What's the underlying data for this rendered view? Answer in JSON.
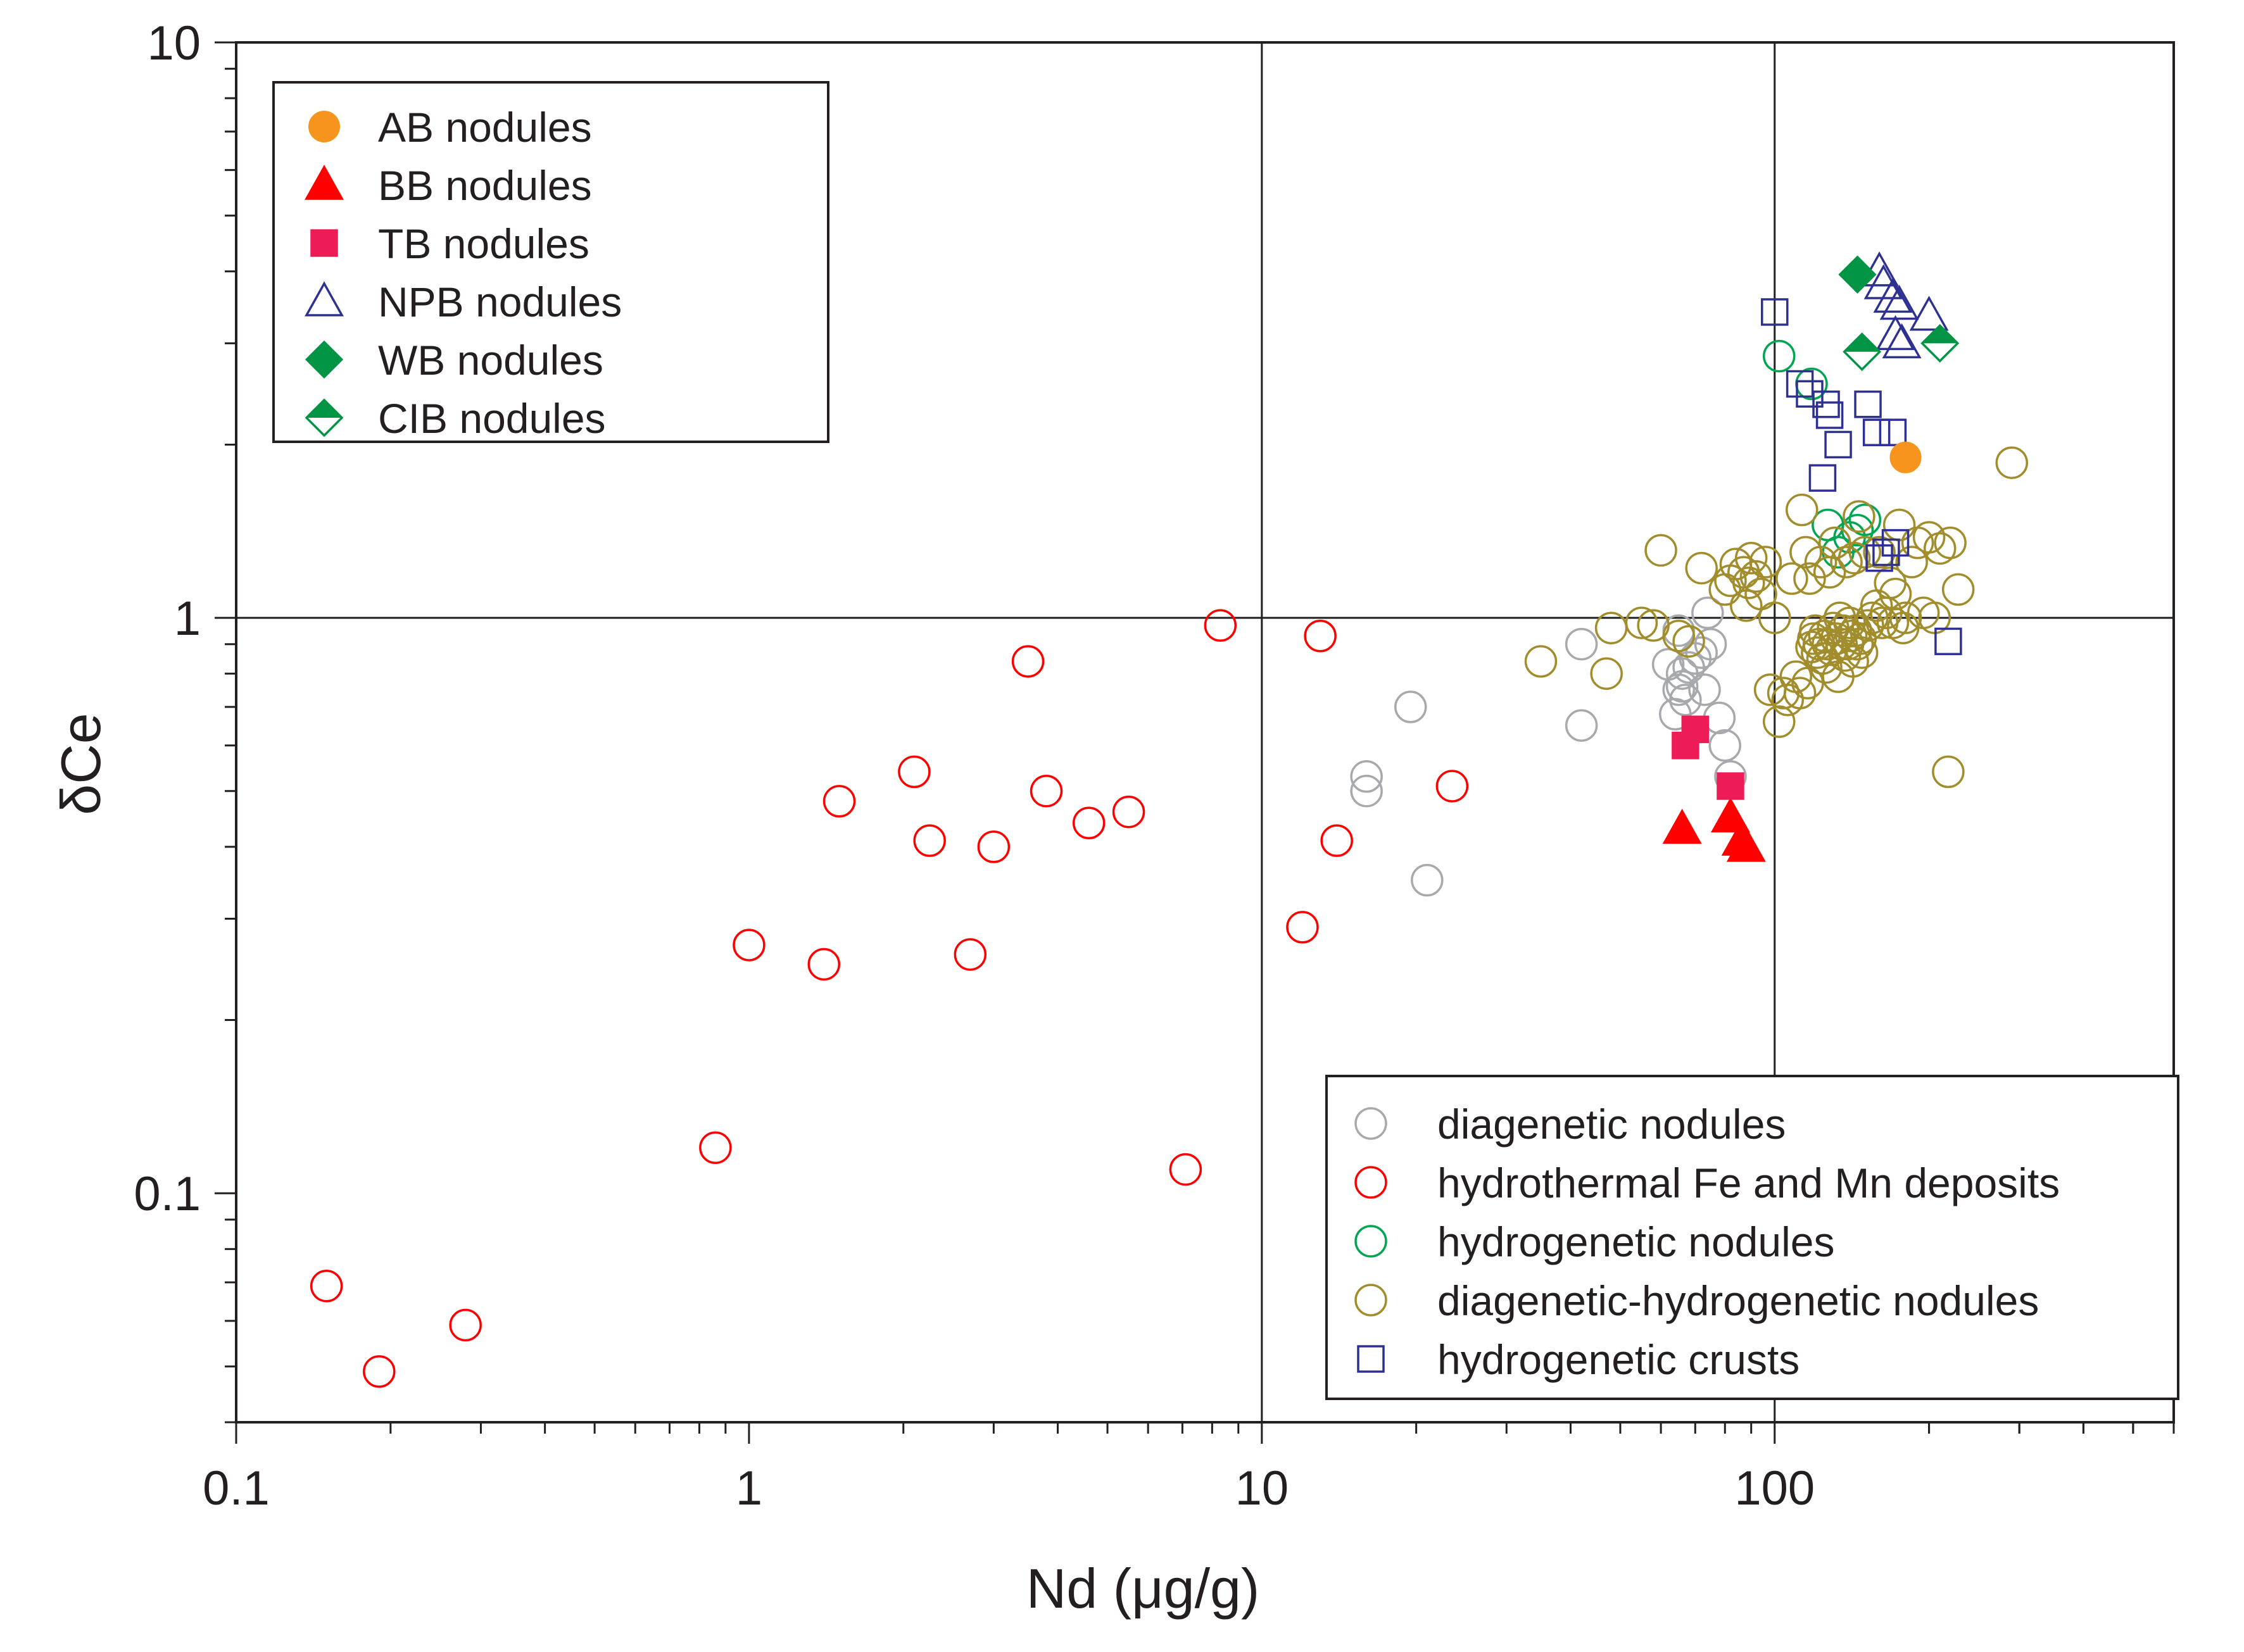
{
  "chart_data": {
    "type": "scatter",
    "title": "",
    "xlabel": "Nd (μg/g)",
    "ylabel": "δCe",
    "x_scale": "log",
    "y_scale": "log",
    "xlim": [
      0.1,
      600
    ],
    "ylim": [
      0.04,
      10
    ],
    "x_ticks": [
      {
        "value": 0.1,
        "label": "0.1"
      },
      {
        "value": 1,
        "label": "1"
      },
      {
        "value": 10,
        "label": "10"
      },
      {
        "value": 100,
        "label": "100"
      }
    ],
    "y_ticks": [
      {
        "value": 0.1,
        "label": "0.1"
      },
      {
        "value": 1,
        "label": "1"
      },
      {
        "value": 10,
        "label": "10"
      }
    ],
    "grid": "major lines at x = 10, 100 and y = 1",
    "legend_samples_position": "top-left",
    "legend_reference_position": "bottom-right",
    "series": [
      {
        "name": "AB nodules",
        "legend": "samples",
        "marker": "circle",
        "filled": true,
        "color": "#f7941d",
        "points": [
          [
            180,
            1.9
          ]
        ]
      },
      {
        "name": "BB nodules",
        "legend": "samples",
        "marker": "triangle",
        "filled": true,
        "color": "#ff0000",
        "points": [
          [
            66,
            0.43
          ],
          [
            82,
            0.45
          ],
          [
            86,
            0.41
          ],
          [
            88,
            0.4
          ]
        ]
      },
      {
        "name": "TB nodules",
        "legend": "samples",
        "marker": "square",
        "filled": true,
        "color": "#ed1c57",
        "points": [
          [
            67,
            0.6
          ],
          [
            70,
            0.64
          ],
          [
            82,
            0.51
          ]
        ]
      },
      {
        "name": "NPB nodules",
        "legend": "samples",
        "marker": "triangle",
        "filled": false,
        "color": "#2e3192",
        "points": [
          [
            160,
            4.0
          ],
          [
            163,
            3.8
          ],
          [
            170,
            3.6
          ],
          [
            175,
            3.5
          ],
          [
            172,
            3.1
          ],
          [
            177,
            3.0
          ],
          [
            200,
            3.35
          ]
        ]
      },
      {
        "name": "WB nodules",
        "legend": "samples",
        "marker": "diamond",
        "filled": true,
        "color": "#009444",
        "points": [
          [
            145,
            3.95
          ]
        ]
      },
      {
        "name": "CIB nodules",
        "legend": "samples",
        "marker": "half-diamond",
        "filled": "half",
        "color": "#009444",
        "points": [
          [
            148,
            2.9
          ],
          [
            210,
            3.0
          ]
        ]
      },
      {
        "name": "diagenetic nodules",
        "legend": "reference",
        "marker": "circle",
        "filled": false,
        "color": "#a7a9ac",
        "points": [
          [
            16,
            0.53
          ],
          [
            16,
            0.5
          ],
          [
            19.5,
            0.7
          ],
          [
            21,
            0.35
          ],
          [
            42,
            0.9
          ],
          [
            42,
            0.65
          ],
          [
            62,
            0.83
          ],
          [
            64,
            0.68
          ],
          [
            65,
            0.75
          ],
          [
            66,
            0.76
          ],
          [
            66,
            0.8
          ],
          [
            67,
            0.72
          ],
          [
            68,
            0.82
          ],
          [
            70,
            0.85
          ],
          [
            72,
            0.87
          ],
          [
            73,
            0.75
          ],
          [
            74,
            1.02
          ],
          [
            75,
            0.9
          ],
          [
            78,
            0.67
          ],
          [
            80,
            0.6
          ],
          [
            82,
            0.53
          ],
          [
            65,
            0.95
          ]
        ]
      },
      {
        "name": "hydrothermal Fe and Mn deposits",
        "legend": "reference",
        "marker": "circle",
        "filled": false,
        "color": "#ff0000",
        "points": [
          [
            0.15,
            0.069
          ],
          [
            0.19,
            0.049
          ],
          [
            0.28,
            0.059
          ],
          [
            0.86,
            0.12
          ],
          [
            1.0,
            0.27
          ],
          [
            1.4,
            0.25
          ],
          [
            1.5,
            0.48
          ],
          [
            2.1,
            0.54
          ],
          [
            2.25,
            0.41
          ],
          [
            2.7,
            0.26
          ],
          [
            3.0,
            0.4
          ],
          [
            3.5,
            0.84
          ],
          [
            3.8,
            0.5
          ],
          [
            4.6,
            0.44
          ],
          [
            5.5,
            0.46
          ],
          [
            7.1,
            0.11
          ],
          [
            8.3,
            0.97
          ],
          [
            12,
            0.29
          ],
          [
            13,
            0.93
          ],
          [
            14,
            0.41
          ],
          [
            23.5,
            0.51
          ]
        ]
      },
      {
        "name": "hydrogenetic nodules",
        "legend": "reference",
        "marker": "circle",
        "filled": false,
        "color": "#00a651",
        "points": [
          [
            102,
            2.85
          ],
          [
            118,
            2.55
          ],
          [
            127,
            1.45
          ],
          [
            133,
            1.3
          ],
          [
            140,
            1.38
          ],
          [
            145,
            1.42
          ],
          [
            150,
            1.48
          ]
        ]
      },
      {
        "name": "diagenetic-hydrogenetic nodules",
        "legend": "reference",
        "marker": "circle",
        "filled": false,
        "color": "#a18d2c",
        "points": [
          [
            35,
            0.84
          ],
          [
            47,
            0.8
          ],
          [
            48,
            0.96
          ],
          [
            55,
            0.98
          ],
          [
            58,
            0.97
          ],
          [
            60,
            1.31
          ],
          [
            65,
            0.93
          ],
          [
            68,
            0.91
          ],
          [
            72,
            1.22
          ],
          [
            80,
            1.12
          ],
          [
            82,
            1.16
          ],
          [
            84,
            1.24
          ],
          [
            87,
            1.2
          ],
          [
            88,
            1.05
          ],
          [
            89,
            1.15
          ],
          [
            90,
            1.27
          ],
          [
            92,
            1.18
          ],
          [
            94,
            1.1
          ],
          [
            96,
            1.25
          ],
          [
            98,
            0.75
          ],
          [
            100,
            1.0
          ],
          [
            102,
            0.66
          ],
          [
            104,
            0.74
          ],
          [
            106,
            0.72
          ],
          [
            108,
            1.17
          ],
          [
            110,
            0.79
          ],
          [
            112,
            0.74
          ],
          [
            113,
            1.54
          ],
          [
            115,
            1.3
          ],
          [
            116,
            0.77
          ],
          [
            117,
            1.17
          ],
          [
            118,
            0.89
          ],
          [
            119,
            0.92
          ],
          [
            120,
            0.95
          ],
          [
            121,
            0.87
          ],
          [
            122,
            0.9
          ],
          [
            123,
            1.25
          ],
          [
            124,
            0.85
          ],
          [
            125,
            0.93
          ],
          [
            126,
            0.82
          ],
          [
            127,
            0.9
          ],
          [
            128,
            1.2
          ],
          [
            129,
            0.88
          ],
          [
            130,
            0.96
          ],
          [
            131,
            1.35
          ],
          [
            132,
            0.92
          ],
          [
            133,
            0.79
          ],
          [
            134,
            1.0
          ],
          [
            135,
            0.9
          ],
          [
            136,
            0.95
          ],
          [
            137,
            0.86
          ],
          [
            138,
            1.25
          ],
          [
            139,
            0.9
          ],
          [
            140,
            0.98
          ],
          [
            141,
            0.93
          ],
          [
            142,
            0.84
          ],
          [
            143,
            1.27
          ],
          [
            144,
            0.95
          ],
          [
            145,
            0.9
          ],
          [
            146,
            1.5
          ],
          [
            147,
            0.92
          ],
          [
            148,
            0.87
          ],
          [
            150,
            1.3
          ],
          [
            152,
            0.97
          ],
          [
            155,
            1.0
          ],
          [
            158,
            1.05
          ],
          [
            160,
            1.3
          ],
          [
            162,
            0.98
          ],
          [
            165,
            1.02
          ],
          [
            168,
            1.15
          ],
          [
            170,
            0.98
          ],
          [
            172,
            1.1
          ],
          [
            175,
            1.45
          ],
          [
            178,
            0.96
          ],
          [
            180,
            1.0
          ],
          [
            185,
            1.25
          ],
          [
            190,
            1.35
          ],
          [
            195,
            1.02
          ],
          [
            200,
            1.38
          ],
          [
            205,
            1.0
          ],
          [
            210,
            1.32
          ],
          [
            218,
            0.54
          ],
          [
            220,
            1.35
          ],
          [
            228,
            1.12
          ],
          [
            290,
            1.86
          ]
        ]
      },
      {
        "name": "hydrogenetic crusts",
        "legend": "reference",
        "marker": "square",
        "filled": false,
        "color": "#2e3192",
        "points": [
          [
            100,
            3.4
          ],
          [
            112,
            2.55
          ],
          [
            117,
            2.45
          ],
          [
            124,
            1.75
          ],
          [
            126,
            2.35
          ],
          [
            128,
            2.25
          ],
          [
            133,
            2.0
          ],
          [
            152,
            2.35
          ],
          [
            158,
            2.1
          ],
          [
            160,
            1.27
          ],
          [
            165,
            1.3
          ],
          [
            170,
            2.1
          ],
          [
            172,
            1.35
          ],
          [
            218,
            0.91
          ]
        ]
      }
    ]
  }
}
